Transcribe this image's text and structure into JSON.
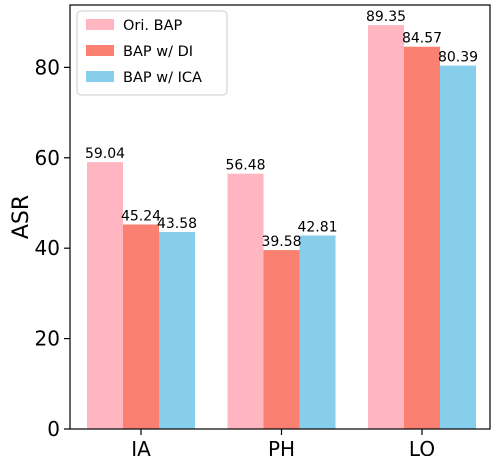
{
  "chart_data": {
    "type": "bar",
    "title": "",
    "xlabel": "",
    "ylabel": "ASR",
    "categories": [
      "IA",
      "PH",
      "LO"
    ],
    "ylim": [
      0,
      93.8
    ],
    "yticks": [
      0,
      20,
      40,
      60,
      80
    ],
    "grid": false,
    "legend_position": "top-left",
    "series": [
      {
        "name": "Ori. BAP",
        "values": [
          59.04,
          56.48,
          89.35
        ],
        "labels": [
          "59.04",
          "56.48",
          "89.35"
        ],
        "color": "#FFB6C1"
      },
      {
        "name": "BAP w/ DI",
        "values": [
          45.24,
          39.58,
          84.57
        ],
        "labels": [
          "45.24",
          "39.58",
          "84.57"
        ],
        "color": "#FA8072"
      },
      {
        "name": "BAP w/ ICA",
        "values": [
          43.58,
          42.81,
          80.39
        ],
        "labels": [
          "43.58",
          "42.81",
          "80.39"
        ],
        "color": "#87CEEB"
      }
    ]
  }
}
